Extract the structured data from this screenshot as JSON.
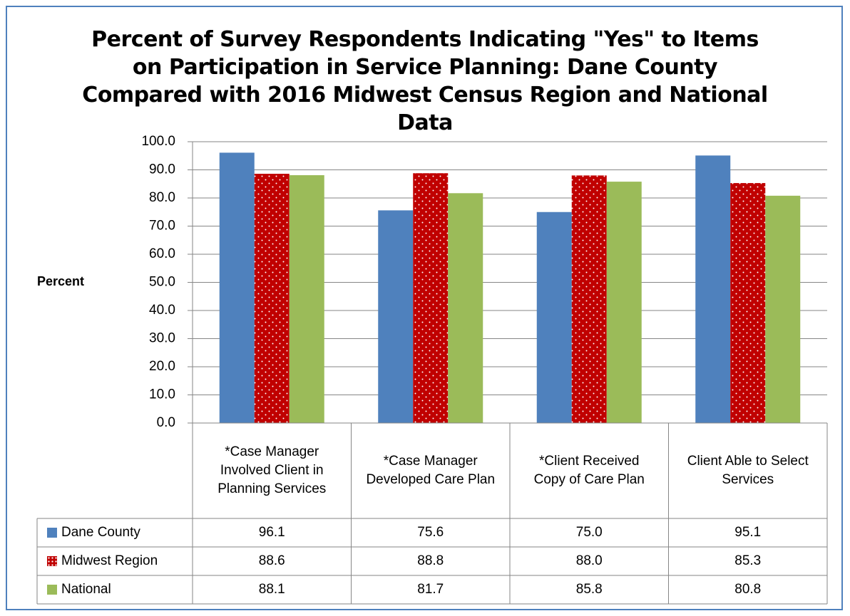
{
  "chart_data": {
    "type": "bar",
    "title": "Percent of Survey Respondents Indicating \"Yes\" to Items on Participation in Service Planning:  Dane County Compared with 2016 Midwest Census Region and National Data",
    "y_label": "Percent",
    "categories": [
      "*Case Manager Involved Client in Planning Services",
      "*Case Manager Developed Care Plan",
      "*Client Received Copy of Care Plan",
      "Client Able to Select Services"
    ],
    "series": [
      {
        "name": "Dane County",
        "color": "#4f81bd",
        "values": [
          96.1,
          75.6,
          75,
          95.1
        ],
        "value_labels": [
          "96.1",
          "75.6",
          "75.0",
          "95.1"
        ]
      },
      {
        "name": "Midwest Region",
        "color": "#c00000",
        "pattern": "dotted",
        "values": [
          88.6,
          88.8,
          88,
          85.3
        ],
        "value_labels": [
          "88.6",
          "88.8",
          "88.0",
          "85.3"
        ]
      },
      {
        "name": "National",
        "color": "#9bbb59",
        "values": [
          88.1,
          81.7,
          85.8,
          80.8
        ],
        "value_labels": [
          "88.1",
          "81.7",
          "85.8",
          "80.8"
        ]
      }
    ],
    "ylim": [
      0,
      100
    ],
    "yticks": [
      {
        "value": 0,
        "label": "0.0"
      },
      {
        "value": 10,
        "label": "10.0"
      },
      {
        "value": 20,
        "label": "20.0"
      },
      {
        "value": 30,
        "label": "30.0"
      },
      {
        "value": 40,
        "label": "40.0"
      },
      {
        "value": 50,
        "label": "50.0"
      },
      {
        "value": 60,
        "label": "60.0"
      },
      {
        "value": 70,
        "label": "70.0"
      },
      {
        "value": 80,
        "label": "80.0"
      },
      {
        "value": 90,
        "label": "90.0"
      },
      {
        "value": 100,
        "label": "100.0"
      }
    ],
    "grid": true,
    "data_table": true
  }
}
